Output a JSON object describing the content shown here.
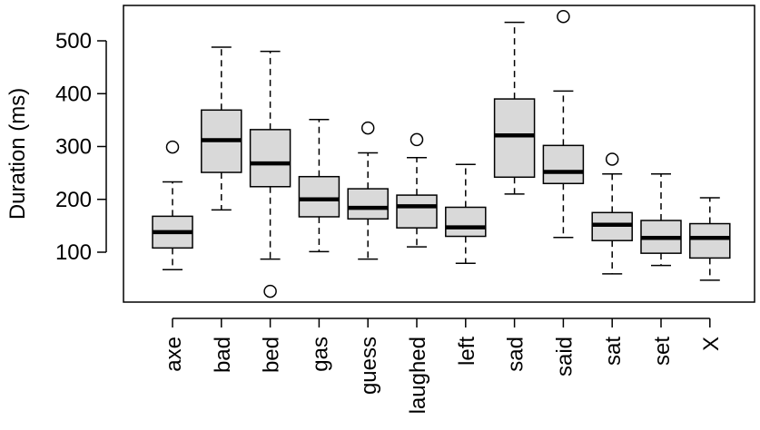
{
  "chart_data": {
    "type": "boxplot",
    "title": "",
    "xlabel": "",
    "ylabel": "Duration (ms)",
    "ylim": [
      10,
      560
    ],
    "y_ticks": [
      100,
      200,
      300,
      400,
      500
    ],
    "grid": false,
    "legend": "none",
    "box_fill": "#d9d9d9",
    "line_color": "#000000",
    "categories": [
      "axe",
      "bad",
      "bed",
      "gas",
      "guess",
      "laughed",
      "left",
      "sad",
      "said",
      "sat",
      "set",
      "X"
    ],
    "boxes": [
      {
        "category": "axe",
        "whisker_low": 67,
        "q1": 108,
        "median": 138,
        "q3": 168,
        "whisker_high": 233,
        "outliers": [
          299
        ]
      },
      {
        "category": "bad",
        "whisker_low": 180,
        "q1": 251,
        "median": 312,
        "q3": 369,
        "whisker_high": 488,
        "outliers": []
      },
      {
        "category": "bed",
        "whisker_low": 87,
        "q1": 224,
        "median": 268,
        "q3": 332,
        "whisker_high": 480,
        "outliers": [
          26
        ]
      },
      {
        "category": "gas",
        "whisker_low": 101,
        "q1": 167,
        "median": 200,
        "q3": 243,
        "whisker_high": 351,
        "outliers": []
      },
      {
        "category": "guess",
        "whisker_low": 87,
        "q1": 163,
        "median": 184,
        "q3": 220,
        "whisker_high": 288,
        "outliers": [
          335
        ]
      },
      {
        "category": "laughed",
        "whisker_low": 110,
        "q1": 146,
        "median": 187,
        "q3": 208,
        "whisker_high": 279,
        "outliers": [
          313
        ]
      },
      {
        "category": "left",
        "whisker_low": 79,
        "q1": 130,
        "median": 147,
        "q3": 185,
        "whisker_high": 266,
        "outliers": []
      },
      {
        "category": "sad",
        "whisker_low": 210,
        "q1": 242,
        "median": 321,
        "q3": 390,
        "whisker_high": 535,
        "outliers": []
      },
      {
        "category": "said",
        "whisker_low": 128,
        "q1": 230,
        "median": 252,
        "q3": 302,
        "whisker_high": 405,
        "outliers": [
          546
        ]
      },
      {
        "category": "sat",
        "whisker_low": 59,
        "q1": 122,
        "median": 152,
        "q3": 175,
        "whisker_high": 248,
        "outliers": [
          276
        ]
      },
      {
        "category": "set",
        "whisker_low": 75,
        "q1": 98,
        "median": 127,
        "q3": 160,
        "whisker_high": 248,
        "outliers": []
      },
      {
        "category": "X",
        "whisker_low": 47,
        "q1": 89,
        "median": 127,
        "q3": 154,
        "whisker_high": 203,
        "outliers": []
      }
    ]
  }
}
